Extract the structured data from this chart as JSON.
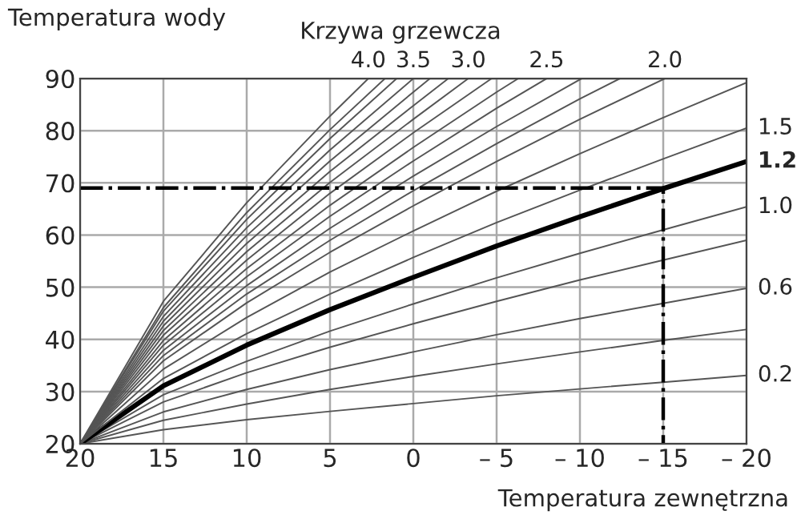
{
  "chart_data": {
    "type": "line",
    "ylabel": "Temperatura wody",
    "xlabel": "Temperatura zewnętrzna",
    "annotations": [
      "Krzywa grzewcza"
    ],
    "xlim": [
      20,
      -20
    ],
    "ylim": [
      20,
      90
    ],
    "xticks": [
      20,
      15,
      10,
      5,
      0,
      {
        "value": -5,
        "label": "– 5"
      },
      {
        "value": -10,
        "label": "– 10"
      },
      {
        "value": -15,
        "label": "– 15"
      },
      {
        "value": -20,
        "label": "– 20"
      }
    ],
    "yticks": [
      20,
      30,
      40,
      50,
      60,
      70,
      80,
      90
    ],
    "grid": true,
    "legend": false,
    "marker": "none",
    "series": [
      {
        "name": "0.2",
        "color": "#555555",
        "x": [
          20,
          15,
          10,
          5,
          0,
          -5,
          -10,
          -15,
          -20
        ],
        "values": [
          20,
          22.7,
          24.6,
          26.2,
          27.7,
          29.2,
          30.5,
          31.8,
          33.1
        ]
      },
      {
        "color": "#555555",
        "x": [
          20,
          15,
          10,
          5,
          0,
          -5,
          -10,
          -15,
          -20
        ],
        "values": [
          20,
          24.5,
          27.6,
          30.4,
          32.9,
          35.3,
          37.6,
          39.8,
          41.9
        ]
      },
      {
        "name": "0.6",
        "color": "#555555",
        "x": [
          20,
          15,
          10,
          5,
          0,
          -5,
          -10,
          -15,
          -20
        ],
        "values": [
          20,
          26.1,
          30.4,
          34.2,
          37.6,
          40.9,
          44.0,
          46.9,
          49.8
        ]
      },
      {
        "color": "#555555",
        "x": [
          20,
          15,
          10,
          5,
          0,
          -5,
          -10,
          -15,
          -20
        ],
        "values": [
          20,
          28.0,
          33.6,
          38.5,
          43.0,
          47.3,
          51.4,
          55.2,
          59.0
        ]
      },
      {
        "name": "1.0",
        "color": "#555555",
        "x": [
          20,
          15,
          10,
          5,
          0,
          -5,
          -10,
          -15,
          -20
        ],
        "values": [
          20,
          29.4,
          35.8,
          41.6,
          46.8,
          51.8,
          56.5,
          61.0,
          65.4
        ]
      },
      {
        "name": "1.2",
        "color": "#000000",
        "x": [
          20,
          15,
          10,
          5,
          0,
          -5,
          -10,
          -15,
          -20
        ],
        "values": [
          20,
          31.1,
          38.9,
          45.7,
          51.9,
          57.9,
          63.5,
          68.9,
          74.1
        ]
      },
      {
        "name": "1.5",
        "color": "#555555",
        "x": [
          20,
          15,
          10,
          5,
          0,
          -5,
          -10,
          -15,
          -20
        ],
        "values": [
          20,
          32.5,
          41.1,
          48.7,
          55.7,
          62.4,
          68.6,
          74.6,
          80.5
        ]
      },
      {
        "color": "#555555",
        "x": [
          20,
          15,
          10,
          5,
          0,
          -5,
          -10,
          -15,
          -20
        ],
        "values": [
          20,
          34.3,
          44.2,
          52.9,
          60.8,
          68.4,
          75.6,
          82.5,
          89.2
        ]
      },
      {
        "name": "2.0",
        "color": "#555555",
        "x": [
          20,
          15,
          10,
          5,
          0,
          -5,
          -10,
          -15.1
        ],
        "values": [
          20,
          35.9,
          47.0,
          56.7,
          65.6,
          74.1,
          82.2,
          90
        ]
      },
      {
        "color": "#555555",
        "x": [
          20,
          15,
          10,
          5,
          0,
          -5,
          -10,
          -12.4
        ],
        "values": [
          20,
          36.9,
          48.7,
          59.0,
          68.5,
          77.5,
          86.1,
          90
        ]
      },
      {
        "color": "#555555",
        "x": [
          20,
          15,
          10,
          5,
          0,
          -5,
          -10.1
        ],
        "values": [
          20,
          37.9,
          50.3,
          61.3,
          71.3,
          80.8,
          90
        ]
      },
      {
        "name": "2.5",
        "color": "#555555",
        "x": [
          20,
          15,
          10,
          5,
          0,
          -5,
          -8
        ],
        "values": [
          20,
          38.9,
          52.0,
          63.6,
          74.2,
          84.3,
          90
        ]
      },
      {
        "color": "#555555",
        "x": [
          20,
          15,
          10,
          5,
          0,
          -5,
          -6.3
        ],
        "values": [
          20,
          39.8,
          53.6,
          65.7,
          76.8,
          87.4,
          90
        ]
      },
      {
        "color": "#555555",
        "x": [
          20,
          15,
          10,
          5,
          0,
          -4.7
        ],
        "values": [
          20,
          40.8,
          55.2,
          68.0,
          79.6,
          90
        ]
      },
      {
        "name": "3.0",
        "color": "#555555",
        "x": [
          20,
          15,
          10,
          5,
          0,
          -3.3
        ],
        "values": [
          20,
          41.7,
          56.8,
          70.1,
          82.2,
          90
        ]
      },
      {
        "color": "#555555",
        "x": [
          20,
          15,
          10,
          5,
          0,
          -2.1
        ],
        "values": [
          20,
          42.6,
          58.4,
          72.2,
          84.8,
          90
        ]
      },
      {
        "color": "#555555",
        "x": [
          20,
          15,
          10,
          5,
          0,
          -1
        ],
        "values": [
          20,
          43.5,
          59.9,
          74.2,
          87.4,
          90
        ]
      },
      {
        "name": "3.5",
        "color": "#555555",
        "x": [
          20,
          15,
          10,
          5,
          0
        ],
        "values": [
          20,
          44.4,
          61.4,
          76.3,
          90
        ]
      },
      {
        "color": "#555555",
        "x": [
          20,
          15,
          10,
          5,
          1
        ],
        "values": [
          20,
          45.4,
          63.0,
          78.5,
          90
        ]
      },
      {
        "color": "#555555",
        "x": [
          20,
          15,
          10,
          5,
          1.7
        ],
        "values": [
          20,
          46.1,
          64.3,
          80.2,
          90
        ]
      },
      {
        "name": "4.0",
        "color": "#555555",
        "x": [
          20,
          15,
          10,
          5,
          2.7
        ],
        "values": [
          20,
          47.3,
          66.2,
          82.8,
          90
        ]
      },
      {
        "color": "#000000",
        "line_style": "dashdot",
        "x": [
          20,
          -15,
          -15
        ],
        "values": [
          69,
          69,
          20
        ]
      }
    ]
  }
}
